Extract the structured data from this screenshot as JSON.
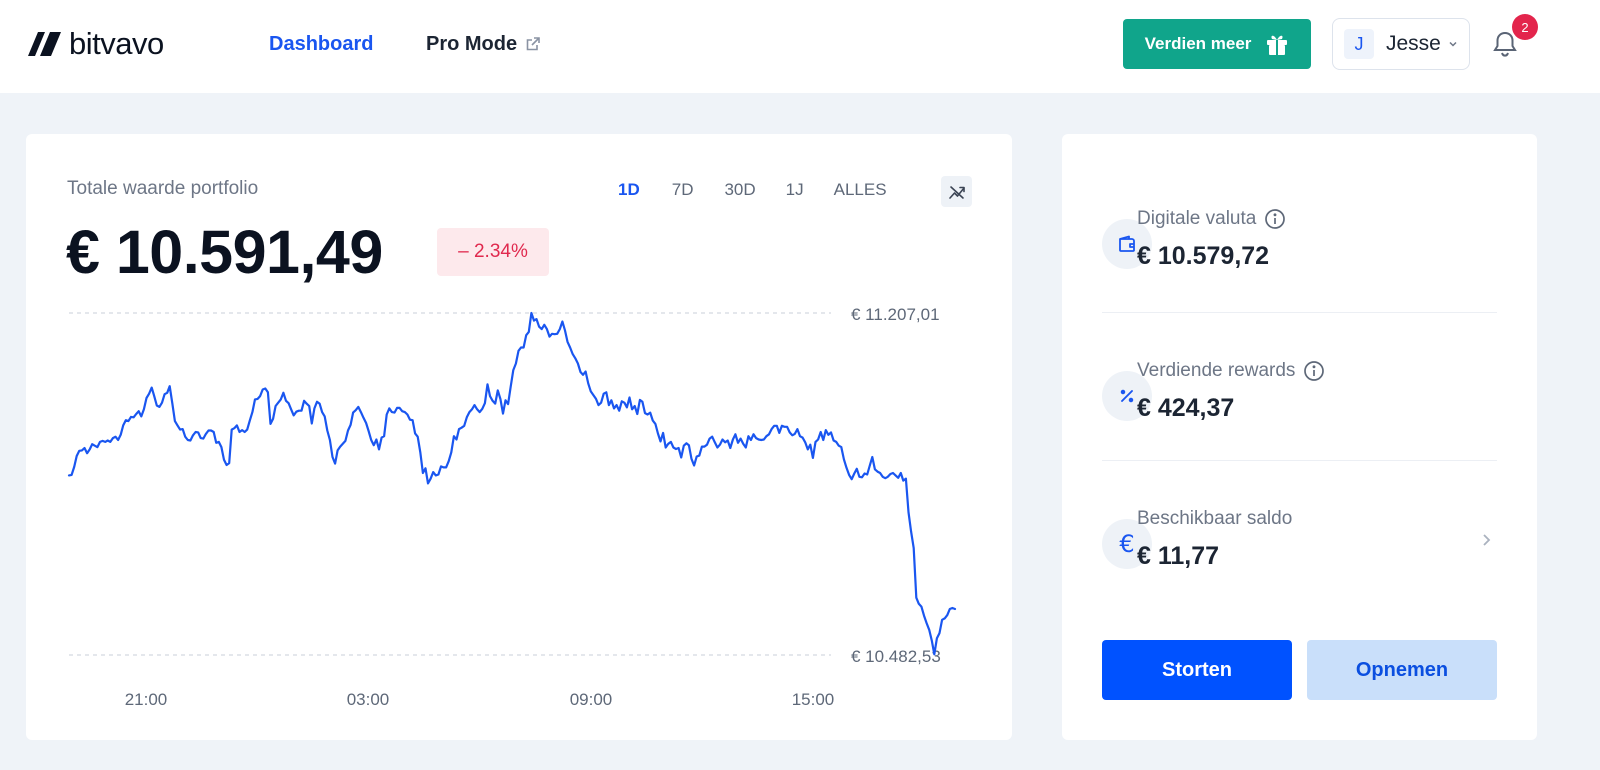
{
  "header": {
    "brand": "bitvavo",
    "nav": {
      "dashboard": "Dashboard",
      "pro_mode": "Pro Mode"
    },
    "earn_button": "Verdien meer",
    "user": {
      "initial": "J",
      "name": "Jesse"
    },
    "notifications_count": "2"
  },
  "portfolio": {
    "label": "Totale waarde portfolio",
    "value": "€ 10.591,49",
    "change": "– 2.34%",
    "ranges": [
      "1D",
      "7D",
      "30D",
      "1J",
      "ALLES"
    ],
    "active_range": "1D"
  },
  "chart_data": {
    "type": "line",
    "color": "#1a56f0",
    "y_max_label": "€ 11.207,01",
    "y_min_label": "€ 10.482,53",
    "ylim": [
      10482.53,
      11207.01
    ],
    "xticks": [
      "21:00",
      "03:00",
      "09:00",
      "15:00"
    ],
    "series": [
      {
        "values": [
          10863,
          10864,
          10881,
          10904,
          10915,
          10916,
          10921,
          10910,
          10918,
          10929,
          10926,
          10923,
          10934,
          10936,
          10934,
          10937,
          10934,
          10942,
          10945,
          10938,
          10949,
          10969,
          10980,
          10978,
          10987,
          10986,
          10993,
          10999,
          10988,
          11003,
          11027,
          11036,
          11049,
          11031,
          11011,
          11008,
          11017,
          11035,
          11038,
          11052,
          11016,
          10978,
          10969,
          10960,
          10961,
          10945,
          10938,
          10937,
          10948,
          10955,
          10954,
          10942,
          10941,
          10951,
          10958,
          10958,
          10955,
          10932,
          10934,
          10923,
          10896,
          10885,
          10889,
          10960,
          10963,
          10969,
          10955,
          10959,
          10955,
          10960,
          10979,
          10997,
          11024,
          11025,
          11031,
          11045,
          11047,
          11039,
          10972,
          10983,
          11010,
          11017,
          11024,
          11038,
          11021,
          11016,
          11003,
          10990,
          10998,
          11000,
          11000,
          11021,
          11015,
          11010,
          10973,
          11005,
          11019,
          11015,
          10997,
          10988,
          10958,
          10938,
          10902,
          10888,
          10916,
          10924,
          10930,
          10936,
          10958,
          10970,
          10996,
          11001,
          11008,
          10997,
          10985,
          10974,
          10957,
          10938,
          10927,
          10939,
          10918,
          10943,
          10946,
          10992,
          11005,
          10997,
          10996,
          11006,
          11006,
          10999,
          10997,
          10992,
          10981,
          10980,
          10952,
          10945,
          10912,
          10868,
          10878,
          10846,
          10856,
          10870,
          10863,
          10865,
          10882,
          10880,
          10880,
          10893,
          10912,
          10946,
          10939,
          10961,
          10964,
          10968,
          10986,
          10997,
          11003,
          11012,
          11003,
          10997,
          11004,
          11016,
          11056,
          11031,
          11021,
          11015,
          11043,
          11025,
          10994,
          11022,
          11014,
          11051,
          11086,
          11100,
          11127,
          11134,
          11134,
          11160,
          11167,
          11207,
          11191,
          11194,
          11178,
          11173,
          11182,
          11173,
          11157,
          11163,
          11162,
          11163,
          11173,
          11189,
          11170,
          11146,
          11134,
          11120,
          11111,
          11100,
          11082,
          11076,
          11083,
          11058,
          11041,
          11033,
          11025,
          11012,
          11017,
          11036,
          11039,
          11012,
          11022,
          11005,
          11012,
          11000,
          11020,
          11017,
          11007,
          11028,
          11003,
          11010,
          10993,
          11023,
          11019,
          10995,
          10992,
          10996,
          10979,
          10972,
          10952,
          10935,
          10953,
          10922,
          10930,
          10934,
          10922,
          10919,
          10921,
          10901,
          10926,
          10931,
          10927,
          10898,
          10884,
          10903,
          10905,
          10924,
          10924,
          10928,
          10941,
          10945,
          10933,
          10922,
          10928,
          10939,
          10933,
          10937,
          10921,
          10939,
          10950,
          10932,
          10941,
          10930,
          10922,
          10946,
          10938,
          10950,
          10942,
          10939,
          10938,
          10939,
          10946,
          10950,
          10961,
          10968,
          10968,
          10953,
          10968,
          10966,
          10966,
          10954,
          10948,
          10951,
          10961,
          10946,
          10943,
          10933,
          10918,
          10928,
          10900,
          10934,
          10939,
          10955,
          10938,
          10959,
          10949,
          10954,
          10937,
          10934,
          10926,
          10923,
          10897,
          10879,
          10864,
          10855,
          10867,
          10877,
          10860,
          10859,
          10867,
          10865,
          10884,
          10902,
          10876,
          10871,
          10868,
          10860,
          10857,
          10860,
          10866,
          10868,
          10863,
          10858,
          10868,
          10852,
          10856,
          10785,
          10744,
          10709,
          10604,
          10591,
          10585,
          10566,
          10550,
          10536,
          10513,
          10484,
          10518,
          10529,
          10557,
          10560,
          10567,
          10580,
          10582,
          10580
        ]
      }
    ]
  },
  "side": {
    "crypto": {
      "label": "Digitale valuta",
      "value": "€ 10.579,72"
    },
    "rewards": {
      "label": "Verdiende rewards",
      "value": "€ 424,37"
    },
    "balance": {
      "label": "Beschikbaar saldo",
      "value": "€ 11,77"
    },
    "deposit": "Storten",
    "withdraw": "Opnemen"
  }
}
